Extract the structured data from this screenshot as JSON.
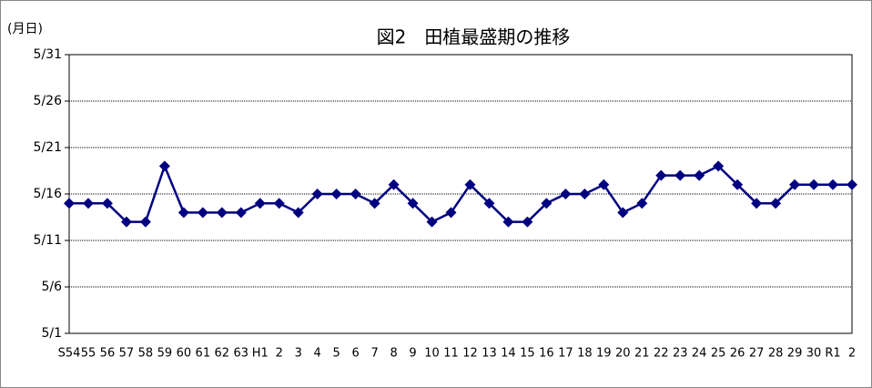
{
  "chart_data": {
    "type": "line",
    "title": "図2　田植最盛期の推移",
    "y_axis_label": "(月日)",
    "categories": [
      "S54",
      "55",
      "56",
      "57",
      "58",
      "59",
      "60",
      "61",
      "62",
      "63",
      "H1",
      "2",
      "3",
      "4",
      "5",
      "6",
      "7",
      "8",
      "9",
      "10",
      "11",
      "12",
      "13",
      "14",
      "15",
      "16",
      "17",
      "18",
      "19",
      "20",
      "21",
      "22",
      "23",
      "24",
      "25",
      "26",
      "27",
      "28",
      "29",
      "30",
      "R1",
      "2"
    ],
    "series": [
      {
        "name": "田植最盛期",
        "color": "#000080",
        "values": [
          15,
          15,
          15,
          13,
          13,
          19,
          14,
          14,
          14,
          14,
          15,
          15,
          14,
          16,
          16,
          16,
          15,
          17,
          15,
          13,
          14,
          17,
          15,
          13,
          13,
          15,
          16,
          16,
          17,
          14,
          15,
          18,
          18,
          18,
          19,
          17,
          15,
          15,
          17,
          17,
          17,
          17
        ]
      }
    ],
    "ylim": [
      1,
      31
    ],
    "yticks": [
      {
        "value": 1,
        "label": "5/1"
      },
      {
        "value": 6,
        "label": "5/6"
      },
      {
        "value": 11,
        "label": "5/11"
      },
      {
        "value": 16,
        "label": "5/16"
      },
      {
        "value": 21,
        "label": "5/21"
      },
      {
        "value": 26,
        "label": "5/26"
      },
      {
        "value": 31,
        "label": "5/31"
      }
    ],
    "grid": true
  }
}
